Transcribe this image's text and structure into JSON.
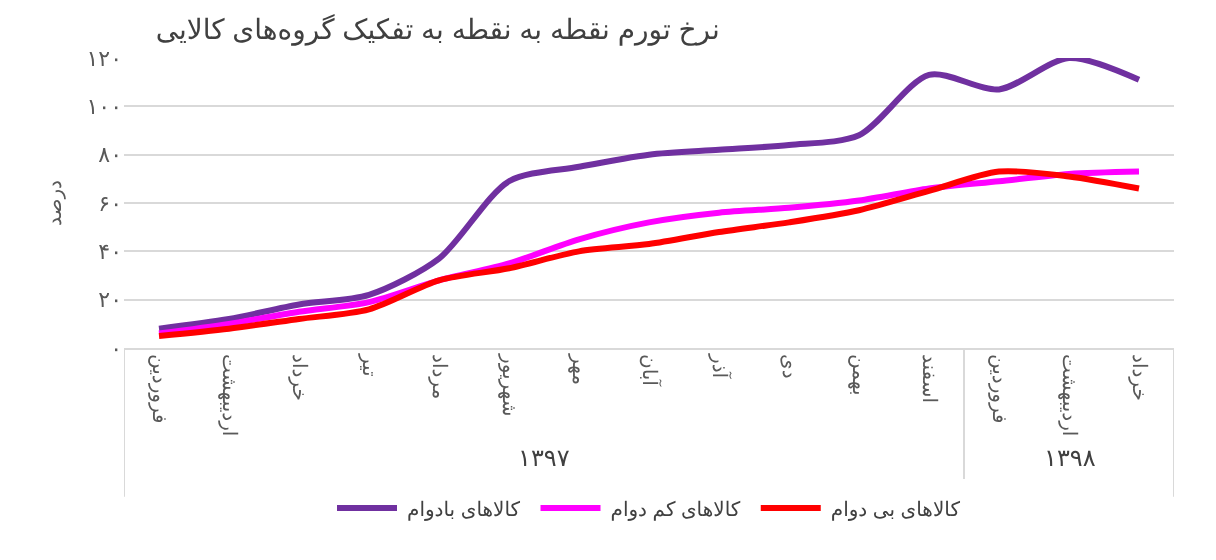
{
  "chart_data": {
    "type": "line",
    "title": "نرخ تورم نقطه به نقطه به تفکیک گروه‌های کالایی",
    "ylabel": "درصد",
    "categories": [
      "فروردین",
      "اردیبهشت",
      "خرداد",
      "تیر",
      "مرداد",
      "شهریور",
      "مهر",
      "آبان",
      "آذر",
      "دی",
      "بهمن",
      "اسفند",
      "فروردین",
      "اردیبهشت",
      "خرداد"
    ],
    "annotations": [
      "۱۳۹۷",
      "۱۳۹۸"
    ],
    "series": [
      {
        "name": "کالاهای بادوام",
        "color": "#7030a0",
        "values": [
          8,
          12,
          18,
          22,
          37,
          69,
          75,
          80,
          82,
          84,
          88,
          113,
          107,
          120,
          111
        ]
      },
      {
        "name": "کالاهای کم دوام",
        "color": "#ff00ff",
        "values": [
          6,
          10,
          15,
          19,
          28,
          35,
          45,
          52,
          56,
          58,
          61,
          66,
          69,
          72,
          73
        ]
      },
      {
        "name": "کالاهای بی دوام",
        "color": "#ff0000",
        "values": [
          5,
          8,
          12,
          16,
          28,
          33,
          40,
          43,
          48,
          52,
          57,
          65,
          73,
          71,
          66
        ]
      }
    ],
    "ylim": [
      0,
      120
    ],
    "yticks": [
      {
        "value": 0,
        "label": "۰"
      },
      {
        "value": 20,
        "label": "۲۰"
      },
      {
        "value": 40,
        "label": "۴۰"
      },
      {
        "value": 60,
        "label": "۶۰"
      },
      {
        "value": 80,
        "label": "۸۰"
      },
      {
        "value": 100,
        "label": "۱۰۰"
      },
      {
        "value": 120,
        "label": "۱۲۰"
      }
    ],
    "grid": "y",
    "legend": "bottom",
    "marker": "none",
    "line_style": "solid"
  }
}
